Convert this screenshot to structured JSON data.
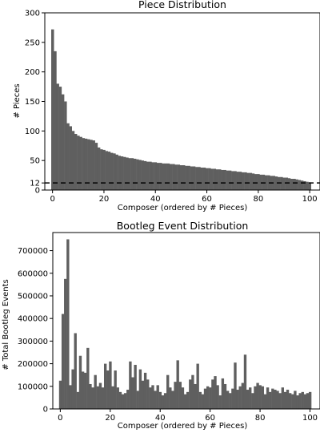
{
  "figure": {
    "bar_color": "#5f5f5f",
    "axis_color": "#000000",
    "background": "#ffffff"
  },
  "chart_data": [
    {
      "type": "bar",
      "title": "Piece Distribution",
      "xlabel": "Composer (ordered by # Pieces)",
      "ylabel": "# Pieces",
      "xlim": [
        -3,
        104
      ],
      "ylim": [
        0,
        300
      ],
      "xticks": [
        0,
        20,
        40,
        60,
        80,
        100
      ],
      "yticks": [
        0,
        12,
        50,
        100,
        150,
        200,
        250,
        300
      ],
      "reference_line": {
        "y": 12,
        "style": "dashed",
        "color": "#000000"
      },
      "x": [
        0,
        1,
        2,
        3,
        4,
        5,
        6,
        7,
        8,
        9,
        10,
        11,
        12,
        13,
        14,
        15,
        16,
        17,
        18,
        19,
        20,
        21,
        22,
        23,
        24,
        25,
        26,
        27,
        28,
        29,
        30,
        31,
        32,
        33,
        34,
        35,
        36,
        37,
        38,
        39,
        40,
        41,
        42,
        43,
        44,
        45,
        46,
        47,
        48,
        49,
        50,
        51,
        52,
        53,
        54,
        55,
        56,
        57,
        58,
        59,
        60,
        61,
        62,
        63,
        64,
        65,
        66,
        67,
        68,
        69,
        70,
        71,
        72,
        73,
        74,
        75,
        76,
        77,
        78,
        79,
        80,
        81,
        82,
        83,
        84,
        85,
        86,
        87,
        88,
        89,
        90,
        91,
        92,
        93,
        94,
        95,
        96,
        97,
        98,
        99,
        100
      ],
      "values": [
        272,
        235,
        180,
        175,
        162,
        150,
        113,
        108,
        100,
        95,
        92,
        90,
        88,
        87,
        86,
        85,
        84,
        80,
        72,
        69,
        68,
        66,
        65,
        63,
        62,
        60,
        58,
        57,
        56,
        55,
        54,
        54,
        53,
        52,
        51,
        50,
        49,
        48,
        48,
        47,
        47,
        46,
        46,
        45,
        45,
        45,
        44,
        44,
        43,
        43,
        42,
        42,
        41,
        41,
        40,
        40,
        39,
        39,
        38,
        38,
        37,
        37,
        36,
        36,
        35,
        35,
        34,
        34,
        33,
        33,
        32,
        32,
        31,
        31,
        30,
        30,
        29,
        29,
        28,
        27,
        27,
        26,
        26,
        25,
        25,
        24,
        24,
        23,
        22,
        22,
        21,
        21,
        20,
        19,
        19,
        18,
        17,
        16,
        15,
        14,
        13
      ]
    },
    {
      "type": "bar",
      "title": "Bootleg Event Distribution",
      "xlabel": "Composer (ordered by # Pieces)",
      "ylabel": "# Total Bootleg Events",
      "xlim": [
        -3,
        104
      ],
      "ylim": [
        0,
        780000
      ],
      "xticks": [
        0,
        20,
        40,
        60,
        80,
        100
      ],
      "yticks": [
        0,
        100000,
        200000,
        300000,
        400000,
        500000,
        600000,
        700000
      ],
      "x": [
        0,
        1,
        2,
        3,
        4,
        5,
        6,
        7,
        8,
        9,
        10,
        11,
        12,
        13,
        14,
        15,
        16,
        17,
        18,
        19,
        20,
        21,
        22,
        23,
        24,
        25,
        26,
        27,
        28,
        29,
        30,
        31,
        32,
        33,
        34,
        35,
        36,
        37,
        38,
        39,
        40,
        41,
        42,
        43,
        44,
        45,
        46,
        47,
        48,
        49,
        50,
        51,
        52,
        53,
        54,
        55,
        56,
        57,
        58,
        59,
        60,
        61,
        62,
        63,
        64,
        65,
        66,
        67,
        68,
        69,
        70,
        71,
        72,
        73,
        74,
        75,
        76,
        77,
        78,
        79,
        80,
        81,
        82,
        83,
        84,
        85,
        86,
        87,
        88,
        89,
        90,
        91,
        92,
        93,
        94,
        95,
        96,
        97,
        98,
        99,
        100
      ],
      "values": [
        125000,
        420000,
        575000,
        750000,
        105000,
        175000,
        335000,
        75000,
        235000,
        165000,
        160000,
        270000,
        110000,
        95000,
        150000,
        100000,
        115000,
        95000,
        200000,
        170000,
        210000,
        100000,
        170000,
        95000,
        75000,
        65000,
        70000,
        85000,
        210000,
        140000,
        195000,
        80000,
        175000,
        125000,
        160000,
        130000,
        95000,
        105000,
        80000,
        105000,
        75000,
        60000,
        70000,
        150000,
        95000,
        80000,
        120000,
        215000,
        120000,
        95000,
        65000,
        75000,
        130000,
        150000,
        110000,
        200000,
        75000,
        65000,
        90000,
        100000,
        95000,
        130000,
        145000,
        105000,
        60000,
        135000,
        110000,
        80000,
        70000,
        90000,
        205000,
        85000,
        100000,
        115000,
        240000,
        85000,
        95000,
        70000,
        100000,
        115000,
        105000,
        100000,
        65000,
        95000,
        75000,
        90000,
        85000,
        80000,
        70000,
        95000,
        75000,
        85000,
        70000,
        65000,
        80000,
        60000,
        70000,
        75000,
        65000,
        70000,
        75000
      ]
    }
  ]
}
